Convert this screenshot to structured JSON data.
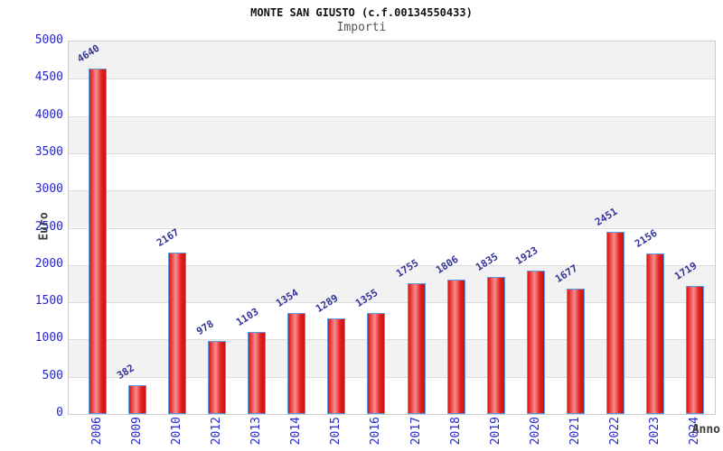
{
  "chart_data": {
    "type": "bar",
    "title": "MONTE SAN GIUSTO (c.f.00134550433)",
    "subtitle": "Importi",
    "xlabel": "Anno",
    "ylabel": "Euro",
    "categories": [
      "2006",
      "2009",
      "2010",
      "2012",
      "2013",
      "2014",
      "2015",
      "2016",
      "2017",
      "2018",
      "2019",
      "2020",
      "2021",
      "2022",
      "2023",
      "2024"
    ],
    "values": [
      4640,
      382,
      2167,
      978,
      1103,
      1354,
      1289,
      1355,
      1755,
      1806,
      1835,
      1923,
      1677,
      2451,
      2156,
      1719
    ],
    "ylim": [
      0,
      5000
    ],
    "y_ticks": [
      0,
      500,
      1000,
      1500,
      2000,
      2500,
      3000,
      3500,
      4000,
      4500,
      5000
    ],
    "grid": true,
    "legend": false,
    "bands_alternating": true
  },
  "colors": {
    "title": "#111111",
    "subtitle": "#555555",
    "tick_label": "#2626cc",
    "value_label": "#333399",
    "axis_label": "#3c3c3c",
    "bar_border": "#5b9ce6",
    "bar_fill_edge": "#d41a1a",
    "bar_fill_center": "#f59090",
    "band_gray": "#f2f2f2",
    "gridline": "#dddddd",
    "plot_border": "#cccccc"
  }
}
